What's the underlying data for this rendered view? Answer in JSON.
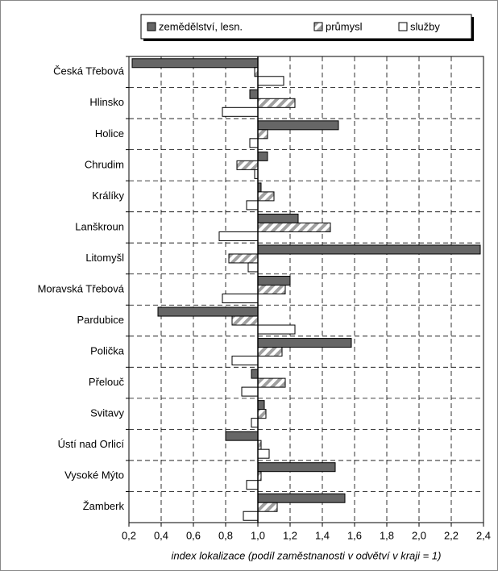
{
  "chart_data": {
    "type": "hbar",
    "baseline": 1,
    "xlabel": "index lokalizace (podíl zaměstnanosti v odvětví v kraji = 1)",
    "categories": [
      "Česká Třebová",
      "Hlinsko",
      "Holice",
      "Chrudim",
      "Králíky",
      "Lanškroun",
      "Litomyšl",
      "Moravská Třebová",
      "Pardubice",
      "Polička",
      "Přelouč",
      "Svitavy",
      "Ústí nad Orlicí",
      "Vysoké Mýto",
      "Žamberk"
    ],
    "series": [
      {
        "name": "zemědělství, lesn.",
        "color": "#666666",
        "values": [
          0.22,
          0.95,
          1.5,
          1.06,
          1.02,
          1.25,
          2.38,
          1.2,
          0.38,
          1.58,
          0.96,
          1.04,
          0.8,
          1.48,
          1.54
        ]
      },
      {
        "name": "průmysl",
        "color": "#a0a0a0",
        "pattern": "diagonal",
        "values": [
          0.98,
          1.23,
          1.06,
          0.87,
          1.1,
          1.45,
          0.82,
          1.17,
          0.84,
          1.15,
          1.17,
          1.05,
          1.02,
          1.02,
          1.12
        ]
      },
      {
        "name": "služby",
        "color": "#ffffff",
        "values": [
          1.16,
          0.78,
          0.95,
          0.98,
          0.93,
          0.76,
          0.94,
          0.78,
          1.23,
          0.84,
          0.9,
          0.96,
          1.07,
          0.93,
          0.91
        ]
      }
    ],
    "xlim": [
      0.2,
      2.4
    ],
    "xticks": [
      {
        "value": 0.2,
        "label": "0,2"
      },
      {
        "value": 0.4,
        "label": "0,4"
      },
      {
        "value": 0.6,
        "label": "0,6"
      },
      {
        "value": 0.8,
        "label": "0,8"
      },
      {
        "value": 1.0,
        "label": "1,0"
      },
      {
        "value": 1.2,
        "label": "1,2"
      },
      {
        "value": 1.4,
        "label": "1,4"
      },
      {
        "value": 1.6,
        "label": "1,6"
      },
      {
        "value": 1.8,
        "label": "1,8"
      },
      {
        "value": 2.0,
        "label": "2,0"
      },
      {
        "value": 2.2,
        "label": "2,2"
      },
      {
        "value": 2.4,
        "label": "2,4"
      }
    ],
    "grid": true,
    "legend": "top"
  }
}
